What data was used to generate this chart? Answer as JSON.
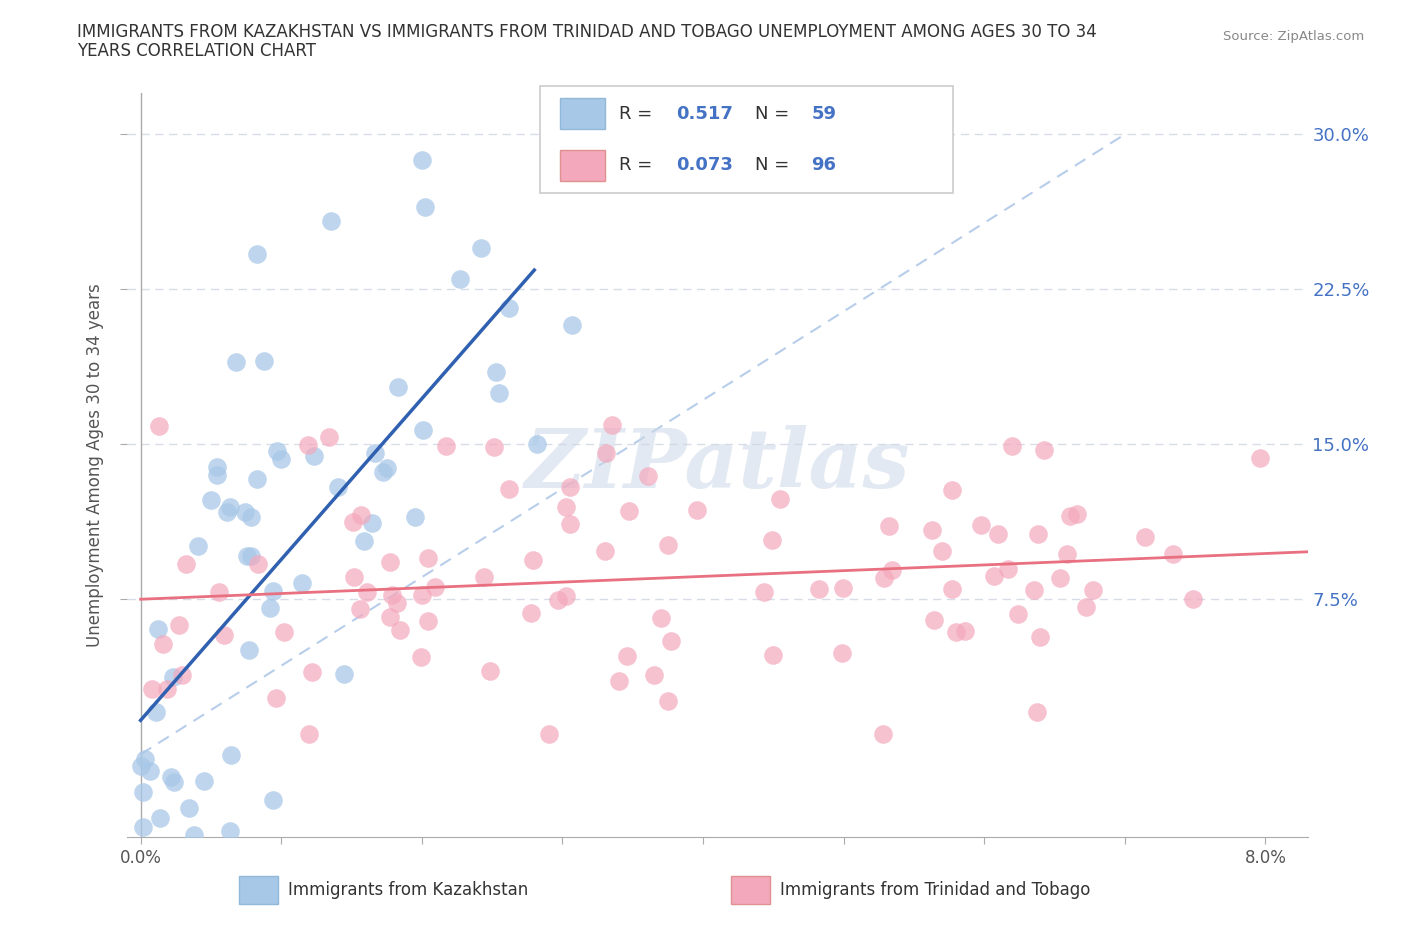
{
  "title_line1": "IMMIGRANTS FROM KAZAKHSTAN VS IMMIGRANTS FROM TRINIDAD AND TOBAGO UNEMPLOYMENT AMONG AGES 30 TO 34",
  "title_line2": "YEARS CORRELATION CHART",
  "source": "Source: ZipAtlas.com",
  "ylabel": "Unemployment Among Ages 30 to 34 years",
  "y_ticks": [
    0.075,
    0.15,
    0.225,
    0.3
  ],
  "y_tick_labels": [
    "7.5%",
    "15.0%",
    "22.5%",
    "30.0%"
  ],
  "x_tick_labels": [
    "0.0%",
    "",
    "",
    "",
    "",
    "",
    "",
    "",
    "8.0%"
  ],
  "x_ticks": [
    0.0,
    0.01,
    0.02,
    0.03,
    0.04,
    0.05,
    0.06,
    0.07,
    0.08
  ],
  "xlim": [
    -0.001,
    0.083
  ],
  "ylim": [
    -0.04,
    0.32
  ],
  "legend_kaz_R": "0.517",
  "legend_kaz_N": "59",
  "legend_tt_R": "0.073",
  "legend_tt_N": "96",
  "legend_label_kaz": "Immigrants from Kazakhstan",
  "legend_label_tt": "Immigrants from Trinidad and Tobago",
  "kaz_color": "#a8c8e8",
  "tt_color": "#f4a8bc",
  "kaz_line_color": "#3060b0",
  "tt_line_color": "#e87080",
  "diag_color": "#b0c8e8",
  "grid_color": "#d8dce8",
  "background_color": "#ffffff",
  "watermark": "ZIPatlas",
  "watermark_color": "#ccd8e8",
  "seed": 12345
}
